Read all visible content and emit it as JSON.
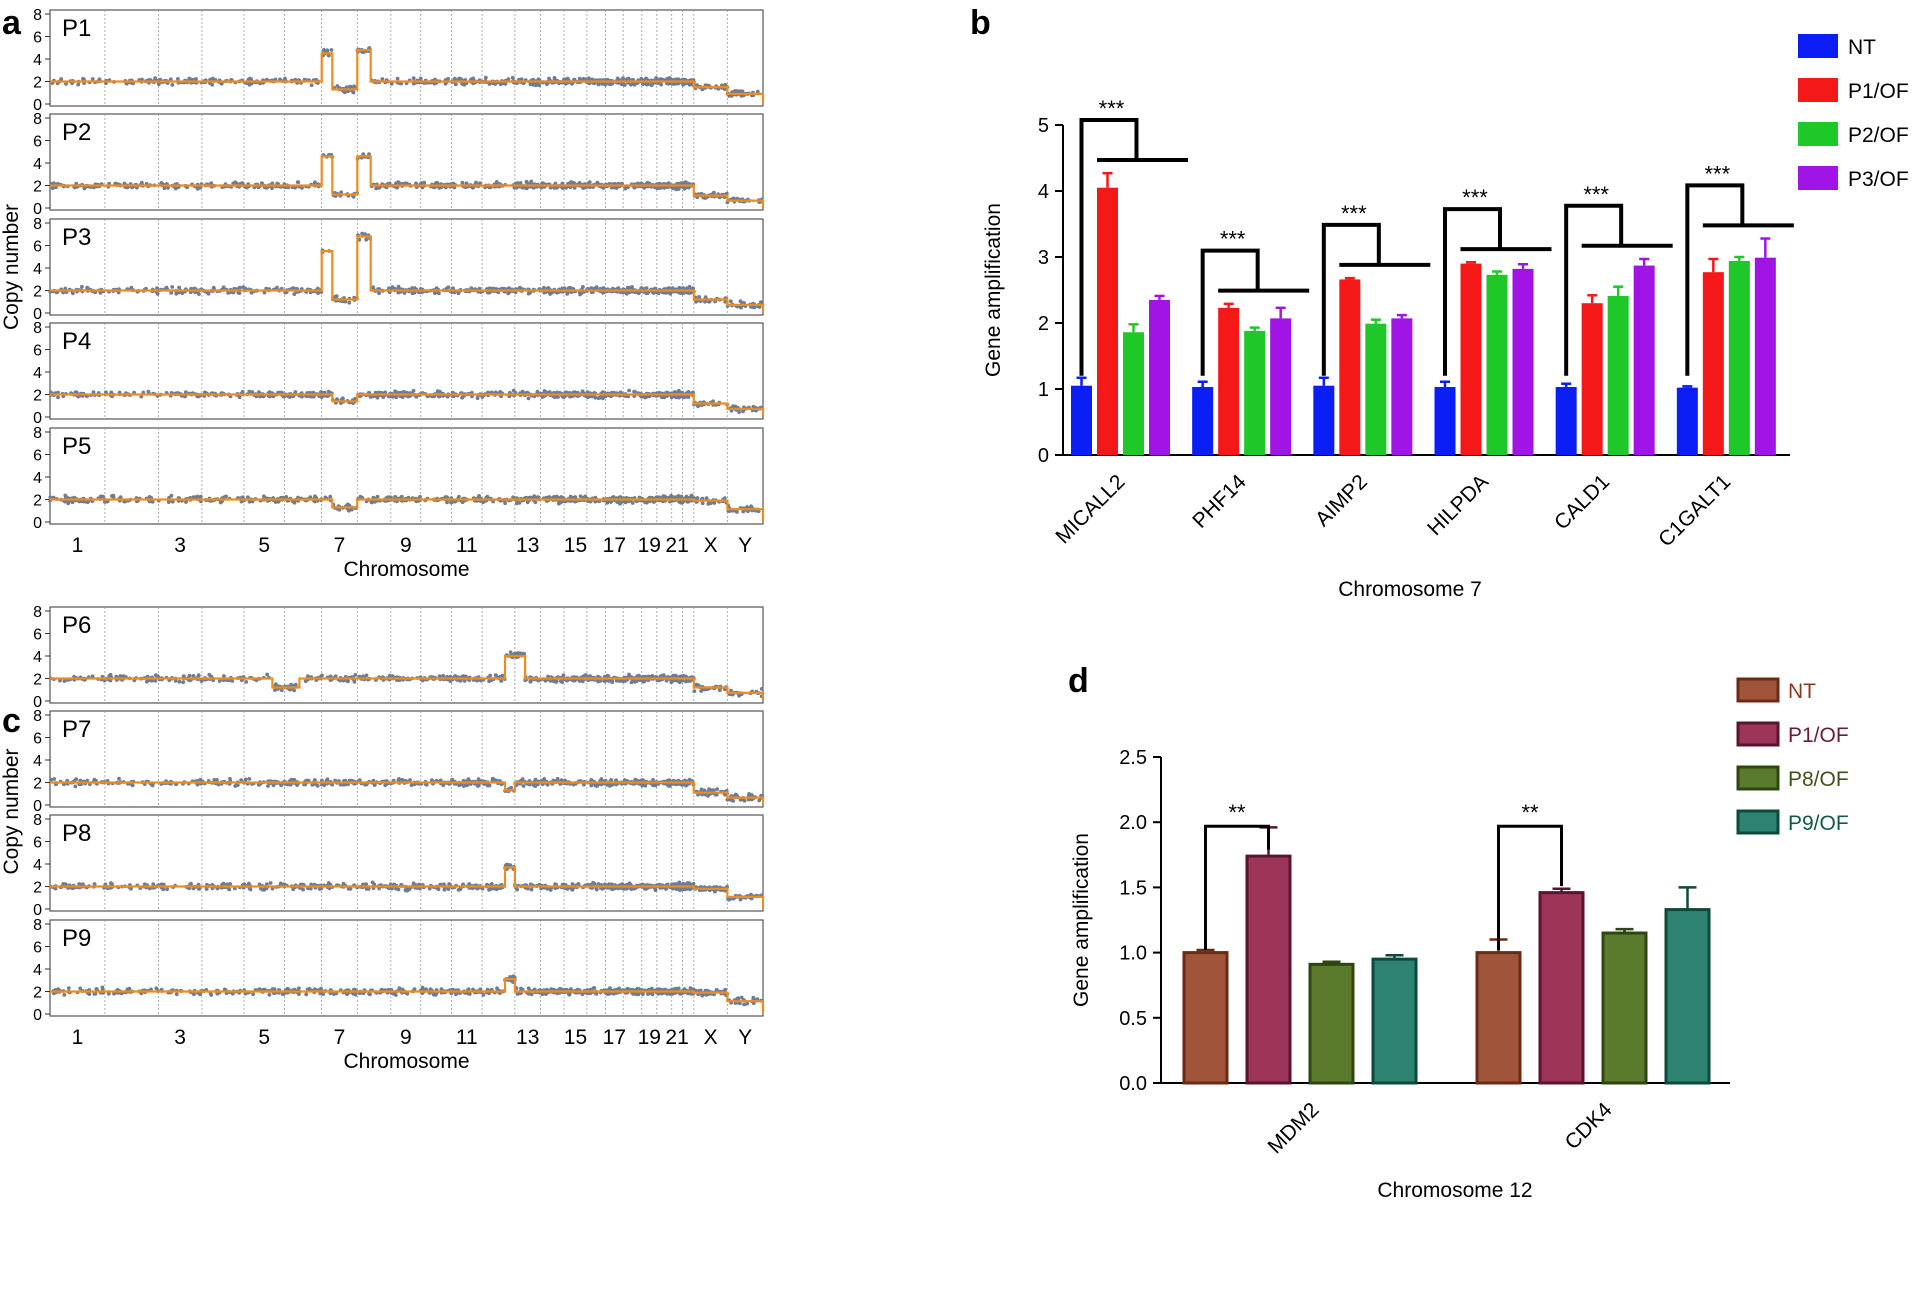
{
  "panels": {
    "a": "a",
    "b": "b",
    "c": "c",
    "d": "d"
  },
  "chart_data": [
    {
      "id": "a",
      "type": "scatter",
      "title": "",
      "xlabel": "Chromosome",
      "ylabel": "Copy number",
      "ylim": [
        0,
        8
      ],
      "yticks": [
        "0",
        "2",
        "4",
        "6",
        "8"
      ],
      "xtick_labels": [
        "1",
        "3",
        "5",
        "7",
        "9",
        "11",
        "13",
        "15",
        "17",
        "19",
        "21",
        "X",
        "Y"
      ],
      "chromosome_separators": 23,
      "samples": [
        {
          "name": "P1",
          "baseline": 2.0,
          "events": [
            {
              "chrom_range": [
                6.0,
                6.3
              ],
              "value": 4.5
            },
            {
              "chrom_range": [
                6.3,
                7.0
              ],
              "value": 1.3
            },
            {
              "chrom_range": [
                7.0,
                7.4
              ],
              "value": 4.8
            }
          ],
          "sex_chrom": 1.5
        },
        {
          "name": "P2",
          "baseline": 2.0,
          "events": [
            {
              "chrom_range": [
                6.0,
                6.3
              ],
              "value": 4.6
            },
            {
              "chrom_range": [
                6.3,
                7.0
              ],
              "value": 1.2
            },
            {
              "chrom_range": [
                7.0,
                7.4
              ],
              "value": 4.6
            }
          ],
          "sex_chrom": 1.1
        },
        {
          "name": "P3",
          "baseline": 2.0,
          "events": [
            {
              "chrom_range": [
                6.0,
                6.3
              ],
              "value": 5.5
            },
            {
              "chrom_range": [
                6.3,
                7.0
              ],
              "value": 1.2
            },
            {
              "chrom_range": [
                7.0,
                7.4
              ],
              "value": 6.8
            }
          ],
          "sex_chrom": 1.2
        },
        {
          "name": "P4",
          "baseline": 2.0,
          "events": [
            {
              "chrom_range": [
                6.3,
                7.0
              ],
              "value": 1.4
            }
          ],
          "sex_chrom": 1.2
        },
        {
          "name": "P5",
          "baseline": 2.0,
          "events": [
            {
              "chrom_range": [
                6.3,
                7.0
              ],
              "value": 1.3
            }
          ],
          "sex_chrom": 1.9
        }
      ]
    },
    {
      "id": "b",
      "type": "bar",
      "title": "",
      "xlabel": "Chromosome 7",
      "ylabel": "Gene amplification",
      "ylim": [
        0,
        5
      ],
      "yticks": [
        "0",
        "1",
        "2",
        "3",
        "4",
        "5"
      ],
      "categories": [
        "MICALL2",
        "PHF14",
        "AIMP2",
        "HILPDA",
        "CALD1",
        "C1GALT1"
      ],
      "series": [
        {
          "name": "NT",
          "color": "#0a1ef5",
          "values": [
            1.05,
            1.03,
            1.05,
            1.03,
            1.03,
            1.02
          ],
          "errors": [
            0.12,
            0.08,
            0.12,
            0.08,
            0.05,
            0.02
          ]
        },
        {
          "name": "P1/OF",
          "color": "#f51818",
          "values": [
            4.05,
            2.23,
            2.66,
            2.9,
            2.3,
            2.77
          ],
          "errors": [
            0.22,
            0.06,
            0.02,
            0.02,
            0.12,
            0.2
          ]
        },
        {
          "name": "P2/OF",
          "color": "#1ec828",
          "values": [
            1.86,
            1.88,
            1.99,
            2.73,
            2.41,
            2.94
          ],
          "errors": [
            0.12,
            0.05,
            0.06,
            0.05,
            0.14,
            0.06
          ]
        },
        {
          "name": "P3/OF",
          "color": "#a014e6",
          "values": [
            2.35,
            2.07,
            2.07,
            2.82,
            2.87,
            2.99
          ],
          "errors": [
            0.06,
            0.16,
            0.05,
            0.07,
            0.1,
            0.29
          ]
        }
      ],
      "significance": [
        "***",
        "***",
        "***",
        "***",
        "***",
        "***"
      ],
      "legend": "top-right"
    },
    {
      "id": "c",
      "type": "scatter",
      "title": "",
      "xlabel": "Chromosome",
      "ylabel": "Copy number",
      "ylim": [
        0,
        8
      ],
      "yticks": [
        "0",
        "2",
        "4",
        "6",
        "8"
      ],
      "xtick_labels": [
        "1",
        "3",
        "5",
        "7",
        "9",
        "11",
        "13",
        "15",
        "17",
        "19",
        "21",
        "X",
        "Y"
      ],
      "chromosome_separators": 23,
      "samples": [
        {
          "name": "P6",
          "baseline": 2.0,
          "events": [
            {
              "chrom_range": [
                4.7,
                5.4
              ],
              "value": 1.2
            },
            {
              "chrom_range": [
                11.7,
                12.4
              ],
              "value": 4.0
            }
          ],
          "sex_chrom": 1.2
        },
        {
          "name": "P7",
          "baseline": 2.0,
          "events": [
            {
              "chrom_range": [
                11.7,
                12.0
              ],
              "value": 1.3
            }
          ],
          "sex_chrom": 1.1
        },
        {
          "name": "P8",
          "baseline": 2.0,
          "events": [
            {
              "chrom_range": [
                11.7,
                12.0
              ],
              "value": 3.7
            }
          ],
          "sex_chrom": 1.8
        },
        {
          "name": "P9",
          "baseline": 2.0,
          "events": [
            {
              "chrom_range": [
                11.7,
                12.0
              ],
              "value": 3.1
            }
          ],
          "sex_chrom": 1.9
        }
      ]
    },
    {
      "id": "d",
      "type": "bar",
      "title": "",
      "xlabel": "Chromosome 12",
      "ylabel": "Gene amplification",
      "ylim": [
        0,
        2.5
      ],
      "yticks": [
        "0.0",
        "0.5",
        "1.0",
        "1.5",
        "2.0",
        "2.5"
      ],
      "categories": [
        "MDM2",
        "CDK4"
      ],
      "series": [
        {
          "name": "NT",
          "color": "#a0553a",
          "stroke": "#6b2a14",
          "label_color": "#8a3a1e",
          "values": [
            1.0,
            1.0
          ],
          "errors": [
            0.02,
            0.1
          ]
        },
        {
          "name": "P1/OF",
          "color": "#9c3558",
          "stroke": "#5a1430",
          "label_color": "#6b1a3a",
          "values": [
            1.74,
            1.46
          ],
          "errors": [
            0.22,
            0.03
          ]
        },
        {
          "name": "P8/OF",
          "color": "#5c7a2c",
          "stroke": "#2f4512",
          "label_color": "#3d5418",
          "values": [
            0.91,
            1.15
          ],
          "errors": [
            0.02,
            0.03
          ]
        },
        {
          "name": "P9/OF",
          "color": "#2e8470",
          "stroke": "#0e4a3c",
          "label_color": "#0f5a48",
          "values": [
            0.95,
            1.33
          ],
          "errors": [
            0.03,
            0.17
          ]
        }
      ],
      "significance": [
        "**",
        "**"
      ],
      "legend": "top-right"
    }
  ]
}
